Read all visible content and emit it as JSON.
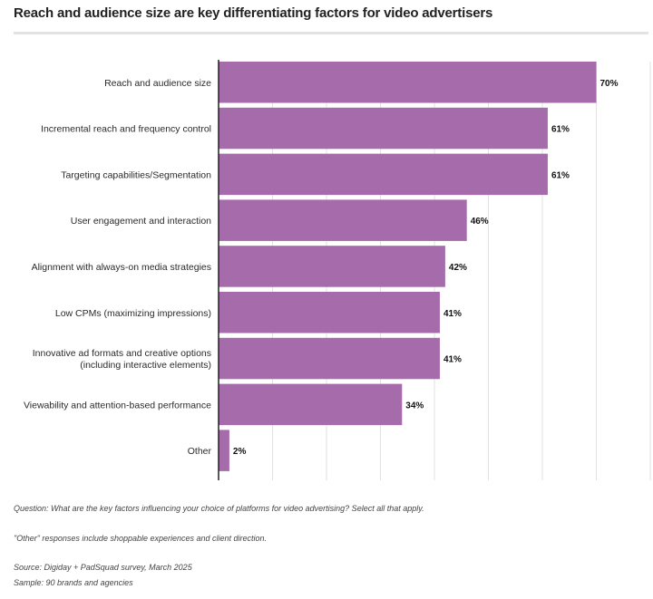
{
  "title": "Reach and audience size are key differentiating factors for video advertisers",
  "chart_data": {
    "type": "bar",
    "orientation": "horizontal",
    "title": "Reach and audience size are key differentiating factors for video advertisers",
    "categories": [
      [
        "Reach and audience size"
      ],
      [
        "Incremental reach and frequency control"
      ],
      [
        "Targeting capabilities/Segmentation"
      ],
      [
        "User engagement and interaction"
      ],
      [
        "Alignment with always-on media strategies"
      ],
      [
        "Low CPMs (maximizing impressions)"
      ],
      [
        "Innovative ad formats and creative options",
        "(including interactive elements)"
      ],
      [
        "Viewability and attention-based performance"
      ],
      [
        "Other"
      ]
    ],
    "values": [
      70,
      61,
      61,
      46,
      42,
      41,
      41,
      34,
      2
    ],
    "value_labels": [
      "70%",
      "61%",
      "61%",
      "46%",
      "42%",
      "41%",
      "41%",
      "34%",
      "2%"
    ],
    "xlim": [
      0,
      80
    ],
    "grid": true,
    "legend": "none",
    "bar_color": "#a66bab"
  },
  "notes": {
    "question": "Question: What are the key factors influencing your choice of platforms for video advertising? Select all that apply.",
    "other": "\"Other\" responses include shoppable experiences and client direction.",
    "source": "Source: Digiday + PadSquad survey, March 2025",
    "sample": "Sample: 90 brands and agencies"
  }
}
